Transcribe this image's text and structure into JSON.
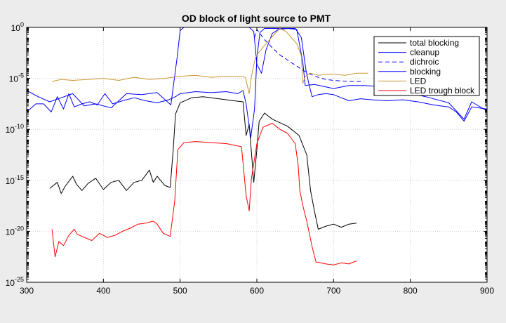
{
  "chart_data": {
    "type": "line",
    "title": "OD block of light source to PMT",
    "xlabel": "",
    "ylabel": "",
    "xlim": [
      300,
      900
    ],
    "ylim": [
      1e-25,
      1
    ],
    "y_scale": "log",
    "grid": true,
    "legend_position": "top-right",
    "x_ticks": [
      "300",
      "400",
      "500",
      "600",
      "700",
      "800",
      "900"
    ],
    "y_ticks": [
      {
        "base": "10",
        "exp": "0",
        "value": 1
      },
      {
        "base": "10",
        "exp": "-5",
        "value": 1e-05
      },
      {
        "base": "10",
        "exp": "-10",
        "value": 1e-10
      },
      {
        "base": "10",
        "exp": "-15",
        "value": 1e-15
      },
      {
        "base": "10",
        "exp": "-20",
        "value": 1e-20
      },
      {
        "base": "10",
        "exp": "-25",
        "value": 1e-25
      }
    ],
    "series": [
      {
        "name": "total blocking",
        "color": "#000000",
        "dash": false,
        "points": [
          [
            330,
            -15.8
          ],
          [
            340,
            -15.2
          ],
          [
            345,
            -16.3
          ],
          [
            350,
            -15.6
          ],
          [
            360,
            -14.6
          ],
          [
            365,
            -15.4
          ],
          [
            372,
            -16.0
          ],
          [
            380,
            -15.3
          ],
          [
            390,
            -14.8
          ],
          [
            400,
            -15.9
          ],
          [
            410,
            -15.2
          ],
          [
            420,
            -15.0
          ],
          [
            430,
            -16.0
          ],
          [
            440,
            -15.2
          ],
          [
            450,
            -15.0
          ],
          [
            460,
            -14.0
          ],
          [
            465,
            -15.2
          ],
          [
            470,
            -14.6
          ],
          [
            480,
            -15.5
          ],
          [
            487,
            -15.7
          ],
          [
            491,
            -12.0
          ],
          [
            494,
            -8.5
          ],
          [
            500,
            -7.4
          ],
          [
            515,
            -6.9
          ],
          [
            530,
            -6.8
          ],
          [
            550,
            -7.0
          ],
          [
            570,
            -7.2
          ],
          [
            582,
            -7.3
          ],
          [
            586,
            -10.6
          ],
          [
            590,
            -9.5
          ],
          [
            593,
            -12.3
          ],
          [
            596,
            -15.2
          ],
          [
            600,
            -12.0
          ],
          [
            603,
            -9.2
          ],
          [
            610,
            -8.4
          ],
          [
            620,
            -9.0
          ],
          [
            640,
            -9.7
          ],
          [
            655,
            -10.6
          ],
          [
            665,
            -12.5
          ],
          [
            670,
            -16.0
          ],
          [
            675,
            -18.0
          ],
          [
            680,
            -19.8
          ],
          [
            690,
            -19.5
          ],
          [
            700,
            -19.3
          ],
          [
            710,
            -19.6
          ],
          [
            720,
            -19.3
          ],
          [
            730,
            -19.2
          ]
        ]
      },
      {
        "name": "cleanup",
        "color": "#0000ff",
        "dash": false,
        "points": [
          [
            300,
            -6.2
          ],
          [
            315,
            -6.8
          ],
          [
            330,
            -7.3
          ],
          [
            345,
            -6.9
          ],
          [
            360,
            -6.5
          ],
          [
            375,
            -7.7
          ],
          [
            390,
            -7.5
          ],
          [
            410,
            -7.9
          ],
          [
            430,
            -6.5
          ],
          [
            450,
            -6.6
          ],
          [
            470,
            -6.4
          ],
          [
            488,
            -7.6
          ],
          [
            496,
            -3.0
          ],
          [
            500,
            -0.3
          ],
          [
            505,
            0
          ],
          [
            590,
            0
          ],
          [
            596,
            -0.4
          ],
          [
            600,
            -3.6
          ],
          [
            606,
            -4.5
          ],
          [
            612,
            -2.2
          ],
          [
            620,
            -0.6
          ],
          [
            628,
            -0.2
          ],
          [
            640,
            -0.1
          ],
          [
            652,
            -0.2
          ],
          [
            660,
            -3.5
          ],
          [
            663,
            -5.7
          ],
          [
            675,
            -5.6
          ],
          [
            700,
            -6.0
          ],
          [
            720,
            -5.7
          ],
          [
            740,
            -5.7
          ],
          [
            760,
            -5.8
          ],
          [
            790,
            -6.3
          ],
          [
            820,
            -6.8
          ],
          [
            850,
            -7.4
          ],
          [
            870,
            -9.0
          ],
          [
            880,
            -7.3
          ],
          [
            900,
            -8.2
          ]
        ]
      },
      {
        "name": "dichroic",
        "color": "#0000ff",
        "dash": true,
        "points": [
          [
            597,
            -1.0
          ],
          [
            600,
            -0.2
          ],
          [
            610,
            -1.2
          ],
          [
            620,
            -2.0
          ],
          [
            630,
            -2.7
          ],
          [
            640,
            -3.2
          ],
          [
            650,
            -3.7
          ],
          [
            660,
            -4.2
          ],
          [
            670,
            -4.6
          ],
          [
            680,
            -4.9
          ],
          [
            690,
            -5.1
          ],
          [
            700,
            -5.2
          ],
          [
            720,
            -5.3
          ],
          [
            740,
            -5.3
          ]
        ]
      },
      {
        "name": "blocking",
        "color": "#0000ff",
        "dash": false,
        "points": [
          [
            300,
            -8.3
          ],
          [
            312,
            -7.5
          ],
          [
            322,
            -7.5
          ],
          [
            332,
            -8.3
          ],
          [
            340,
            -6.8
          ],
          [
            348,
            -8.0
          ],
          [
            355,
            -6.5
          ],
          [
            362,
            -7.8
          ],
          [
            372,
            -7.5
          ],
          [
            382,
            -7.3
          ],
          [
            392,
            -7.6
          ],
          [
            402,
            -6.5
          ],
          [
            412,
            -7.5
          ],
          [
            425,
            -7.2
          ],
          [
            440,
            -6.9
          ],
          [
            455,
            -7.2
          ],
          [
            470,
            -7.4
          ],
          [
            485,
            -7.1
          ],
          [
            494,
            -6.8
          ],
          [
            500,
            -6.5
          ],
          [
            520,
            -6.3
          ],
          [
            540,
            -6.4
          ],
          [
            560,
            -6.3
          ],
          [
            575,
            -6.5
          ],
          [
            582,
            -6.2
          ],
          [
            586,
            -7.5
          ],
          [
            592,
            -10.8
          ],
          [
            597,
            -8.0
          ],
          [
            600,
            -3.0
          ],
          [
            604,
            -0.5
          ],
          [
            610,
            -0.1
          ],
          [
            650,
            -0.1
          ],
          [
            658,
            -1.0
          ],
          [
            664,
            -4.2
          ],
          [
            668,
            -5.6
          ],
          [
            672,
            -6.8
          ],
          [
            680,
            -6.6
          ],
          [
            690,
            -6.5
          ],
          [
            700,
            -6.6
          ],
          [
            710,
            -6.9
          ],
          [
            720,
            -7.2
          ],
          [
            735,
            -7.0
          ],
          [
            750,
            -7.1
          ],
          [
            770,
            -7.2
          ],
          [
            790,
            -7.1
          ],
          [
            810,
            -7.3
          ],
          [
            830,
            -7.6
          ],
          [
            850,
            -7.8
          ],
          [
            860,
            -8.3
          ],
          [
            870,
            -9.2
          ],
          [
            880,
            -7.8
          ],
          [
            900,
            -8.0
          ]
        ]
      },
      {
        "name": "LED",
        "color": "#c9962e",
        "dash": false,
        "points": [
          [
            333,
            -5.3
          ],
          [
            345,
            -5.1
          ],
          [
            360,
            -5.2
          ],
          [
            380,
            -5.1
          ],
          [
            400,
            -5.0
          ],
          [
            420,
            -5.2
          ],
          [
            440,
            -4.9
          ],
          [
            460,
            -5.1
          ],
          [
            480,
            -5.0
          ],
          [
            500,
            -4.8
          ],
          [
            520,
            -4.7
          ],
          [
            540,
            -4.9
          ],
          [
            560,
            -4.8
          ],
          [
            580,
            -4.8
          ],
          [
            585,
            -4.9
          ],
          [
            590,
            -6.5
          ],
          [
            593,
            -4.8
          ],
          [
            598,
            -3.0
          ],
          [
            602,
            -2.5
          ],
          [
            610,
            -1.8
          ],
          [
            620,
            -0.9
          ],
          [
            630,
            -0.1
          ],
          [
            638,
            -0.4
          ],
          [
            645,
            -1.0
          ],
          [
            652,
            -1.6
          ],
          [
            658,
            -2.8
          ],
          [
            660,
            -5.5
          ],
          [
            663,
            -4.8
          ],
          [
            670,
            -4.5
          ],
          [
            680,
            -4.7
          ],
          [
            690,
            -4.6
          ],
          [
            700,
            -4.6
          ],
          [
            715,
            -4.7
          ],
          [
            730,
            -4.5
          ],
          [
            745,
            -4.5
          ]
        ]
      },
      {
        "name": "LED trough block",
        "color": "#ff0000",
        "dash": false,
        "points": [
          [
            333,
            -19.8
          ],
          [
            337,
            -22.5
          ],
          [
            342,
            -21.0
          ],
          [
            348,
            -21.4
          ],
          [
            355,
            -20.4
          ],
          [
            362,
            -19.8
          ],
          [
            366,
            -20.3
          ],
          [
            375,
            -20.6
          ],
          [
            385,
            -20.9
          ],
          [
            395,
            -20.2
          ],
          [
            405,
            -20.6
          ],
          [
            415,
            -20.4
          ],
          [
            425,
            -20.0
          ],
          [
            435,
            -19.7
          ],
          [
            445,
            -19.3
          ],
          [
            455,
            -19.2
          ],
          [
            465,
            -19.0
          ],
          [
            470,
            -19.3
          ],
          [
            478,
            -20.2
          ],
          [
            487,
            -20.5
          ],
          [
            493,
            -17.0
          ],
          [
            497,
            -12.0
          ],
          [
            505,
            -11.3
          ],
          [
            520,
            -11.2
          ],
          [
            540,
            -11.3
          ],
          [
            560,
            -11.4
          ],
          [
            580,
            -11.7
          ],
          [
            586,
            -16.5
          ],
          [
            590,
            -18.0
          ],
          [
            593,
            -14.8
          ],
          [
            600,
            -11.4
          ],
          [
            608,
            -9.8
          ],
          [
            620,
            -9.4
          ],
          [
            630,
            -10.0
          ],
          [
            640,
            -10.4
          ],
          [
            650,
            -11.4
          ],
          [
            654,
            -13.6
          ],
          [
            656,
            -16.0
          ],
          [
            660,
            -17.5
          ],
          [
            665,
            -19.0
          ],
          [
            672,
            -21.5
          ],
          [
            677,
            -23.0
          ],
          [
            690,
            -23.2
          ],
          [
            700,
            -23.3
          ],
          [
            710,
            -23.1
          ],
          [
            720,
            -23.2
          ],
          [
            730,
            -22.9
          ]
        ]
      }
    ]
  }
}
